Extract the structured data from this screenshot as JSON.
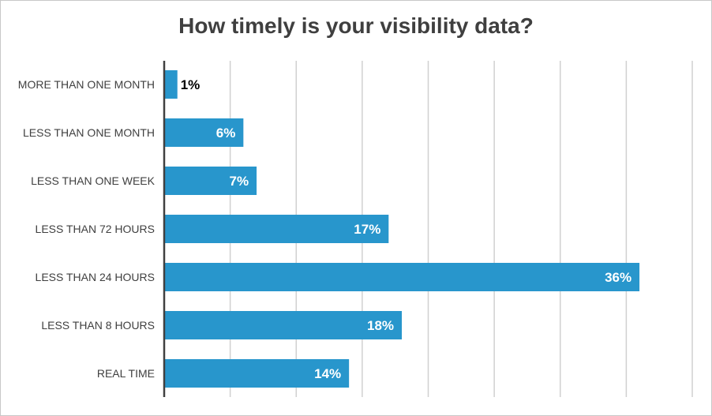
{
  "chart_data": {
    "type": "bar",
    "orientation": "horizontal",
    "title": "How timely is your visibility data?",
    "categories": [
      "MORE THAN ONE MONTH",
      "LESS THAN ONE MONTH",
      "LESS THAN ONE WEEK",
      "LESS THAN 72 HOURS",
      "LESS THAN 24 HOURS",
      "LESS THAN 8 HOURS",
      "REAL TIME"
    ],
    "values": [
      1,
      6,
      7,
      17,
      36,
      18,
      14
    ],
    "value_labels": [
      "1%",
      "6%",
      "7%",
      "17%",
      "36%",
      "18%",
      "14%"
    ],
    "xlim": [
      0,
      40
    ],
    "grid": true,
    "legend": "none",
    "bar_color": "#2896cc",
    "inside_label_color": "#ffffff",
    "outside_label_color": "#000000"
  }
}
